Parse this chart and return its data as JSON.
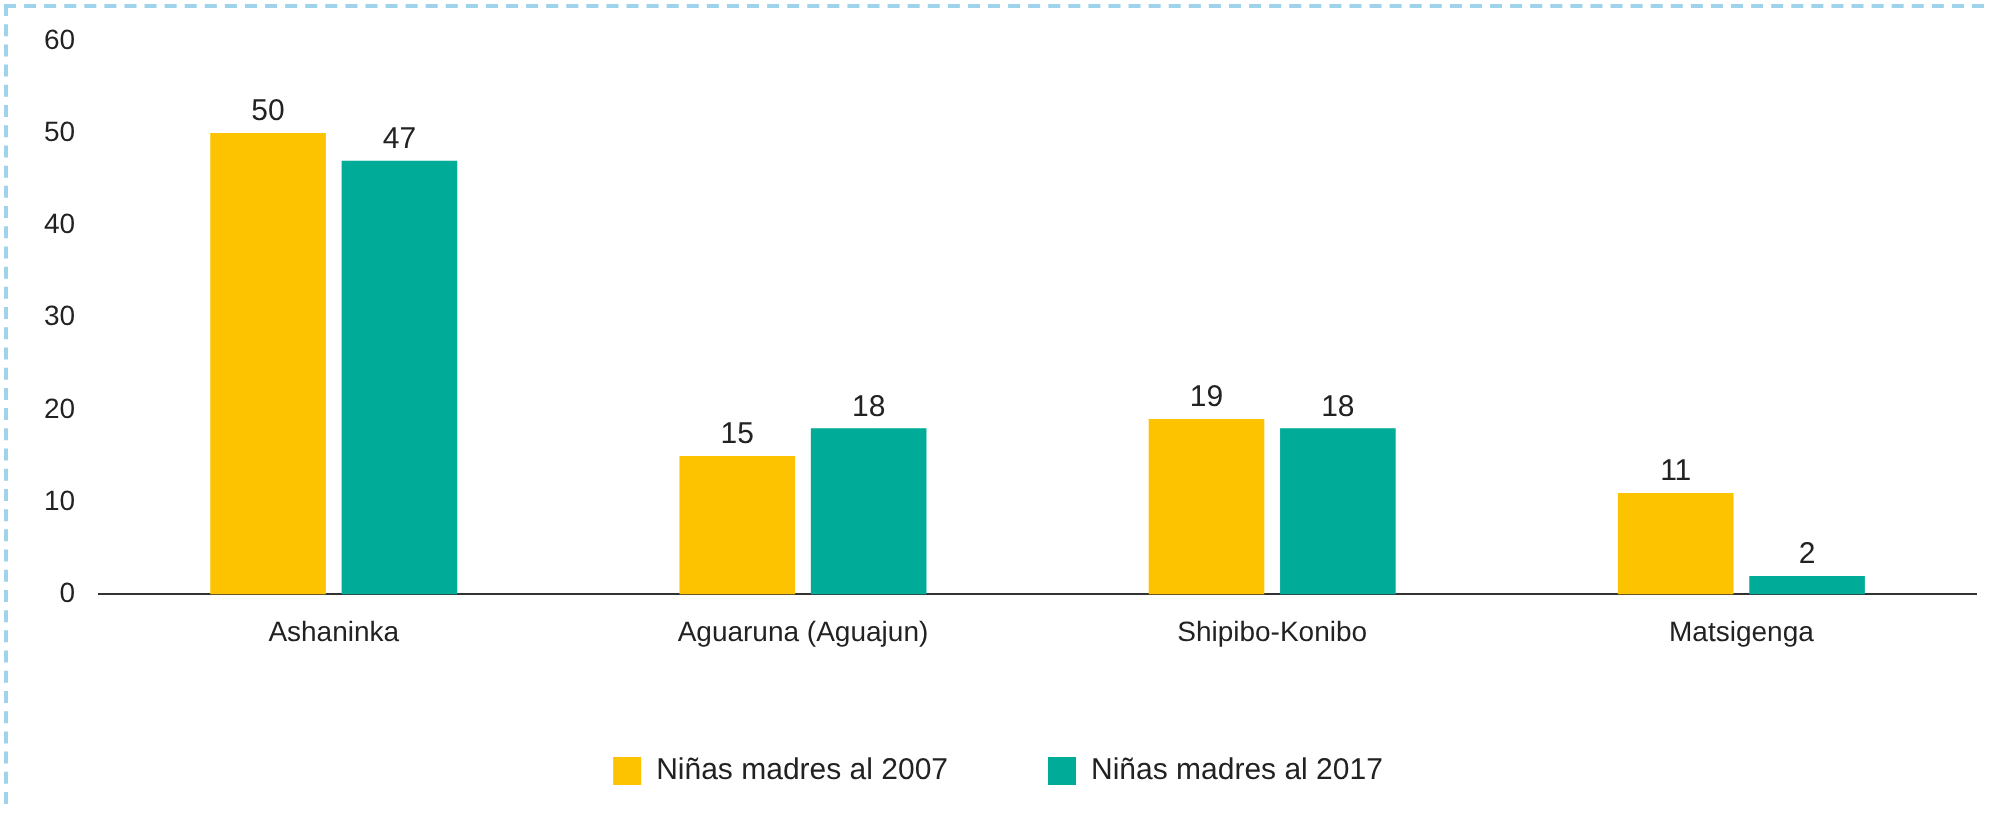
{
  "chart_data": {
    "type": "bar",
    "categories": [
      "Ashaninka",
      "Aguaruna (Aguajun)",
      "Shipibo-Konibo",
      "Matsigenga"
    ],
    "series": [
      {
        "name": "Niñas madres al 2007",
        "color": "#fdc300",
        "values": [
          50,
          15,
          19,
          11
        ]
      },
      {
        "name": "Niñas madres al 2017",
        "color": "#00ab97",
        "values": [
          47,
          18,
          18,
          2
        ]
      }
    ],
    "ylim": [
      0,
      60
    ],
    "yticks": [
      0,
      10,
      20,
      30,
      40,
      50,
      60
    ],
    "grid": false,
    "legend": "bottom",
    "data_labels": true
  }
}
